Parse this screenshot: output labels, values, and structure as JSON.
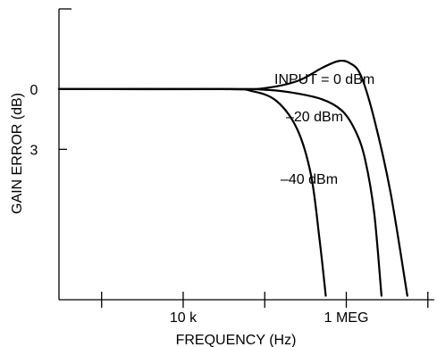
{
  "chart_data": {
    "type": "line",
    "xlabel": "FREQUENCY (Hz)",
    "ylabel": "GAIN ERROR (dB)",
    "x_scale": "log",
    "x_ticks": [
      {
        "value": 1000,
        "label": ""
      },
      {
        "value": 10000,
        "label": "10 k"
      },
      {
        "value": 100000,
        "label": ""
      },
      {
        "value": 1000000,
        "label": "1 MEG"
      },
      {
        "value": 10000000,
        "label": ""
      }
    ],
    "y_ticks": [
      {
        "value": 0,
        "label": "0"
      },
      {
        "value": 3,
        "label": "3"
      }
    ],
    "y_direction": "increasing downward",
    "xlim": [
      300,
      12000000
    ],
    "ylim": [
      -4,
      10.5
    ],
    "series": [
      {
        "name": "INPUT = 0 dBm",
        "points": [
          [
            300,
            0
          ],
          [
            40000,
            0
          ],
          [
            100000,
            -0.05
          ],
          [
            250000,
            -0.4
          ],
          [
            500000,
            -1.05
          ],
          [
            800000,
            -1.4
          ],
          [
            1100000,
            -1.3
          ],
          [
            1500000,
            -0.7
          ],
          [
            2200000,
            1.5
          ],
          [
            3500000,
            5.2
          ],
          [
            5600000,
            10.3
          ]
        ]
      },
      {
        "name": "–20 dBm",
        "points": [
          [
            300,
            0
          ],
          [
            40000,
            0
          ],
          [
            90000,
            0.02
          ],
          [
            200000,
            0.15
          ],
          [
            500000,
            0.5
          ],
          [
            900000,
            1.1
          ],
          [
            1300000,
            2.1
          ],
          [
            1700000,
            3.5
          ],
          [
            2200000,
            6.2
          ],
          [
            2700000,
            10.3
          ]
        ]
      },
      {
        "name": "–40 dBm",
        "points": [
          [
            300,
            0
          ],
          [
            30000,
            0
          ],
          [
            70000,
            0.1
          ],
          [
            140000,
            0.6
          ],
          [
            250000,
            2.0
          ],
          [
            370000,
            4.3
          ],
          [
            470000,
            7.5
          ],
          [
            560000,
            10.3
          ]
        ]
      }
    ],
    "annotations": [
      "INPUT = 0 dBm",
      "–20 dBm",
      "–40 dBm"
    ]
  }
}
